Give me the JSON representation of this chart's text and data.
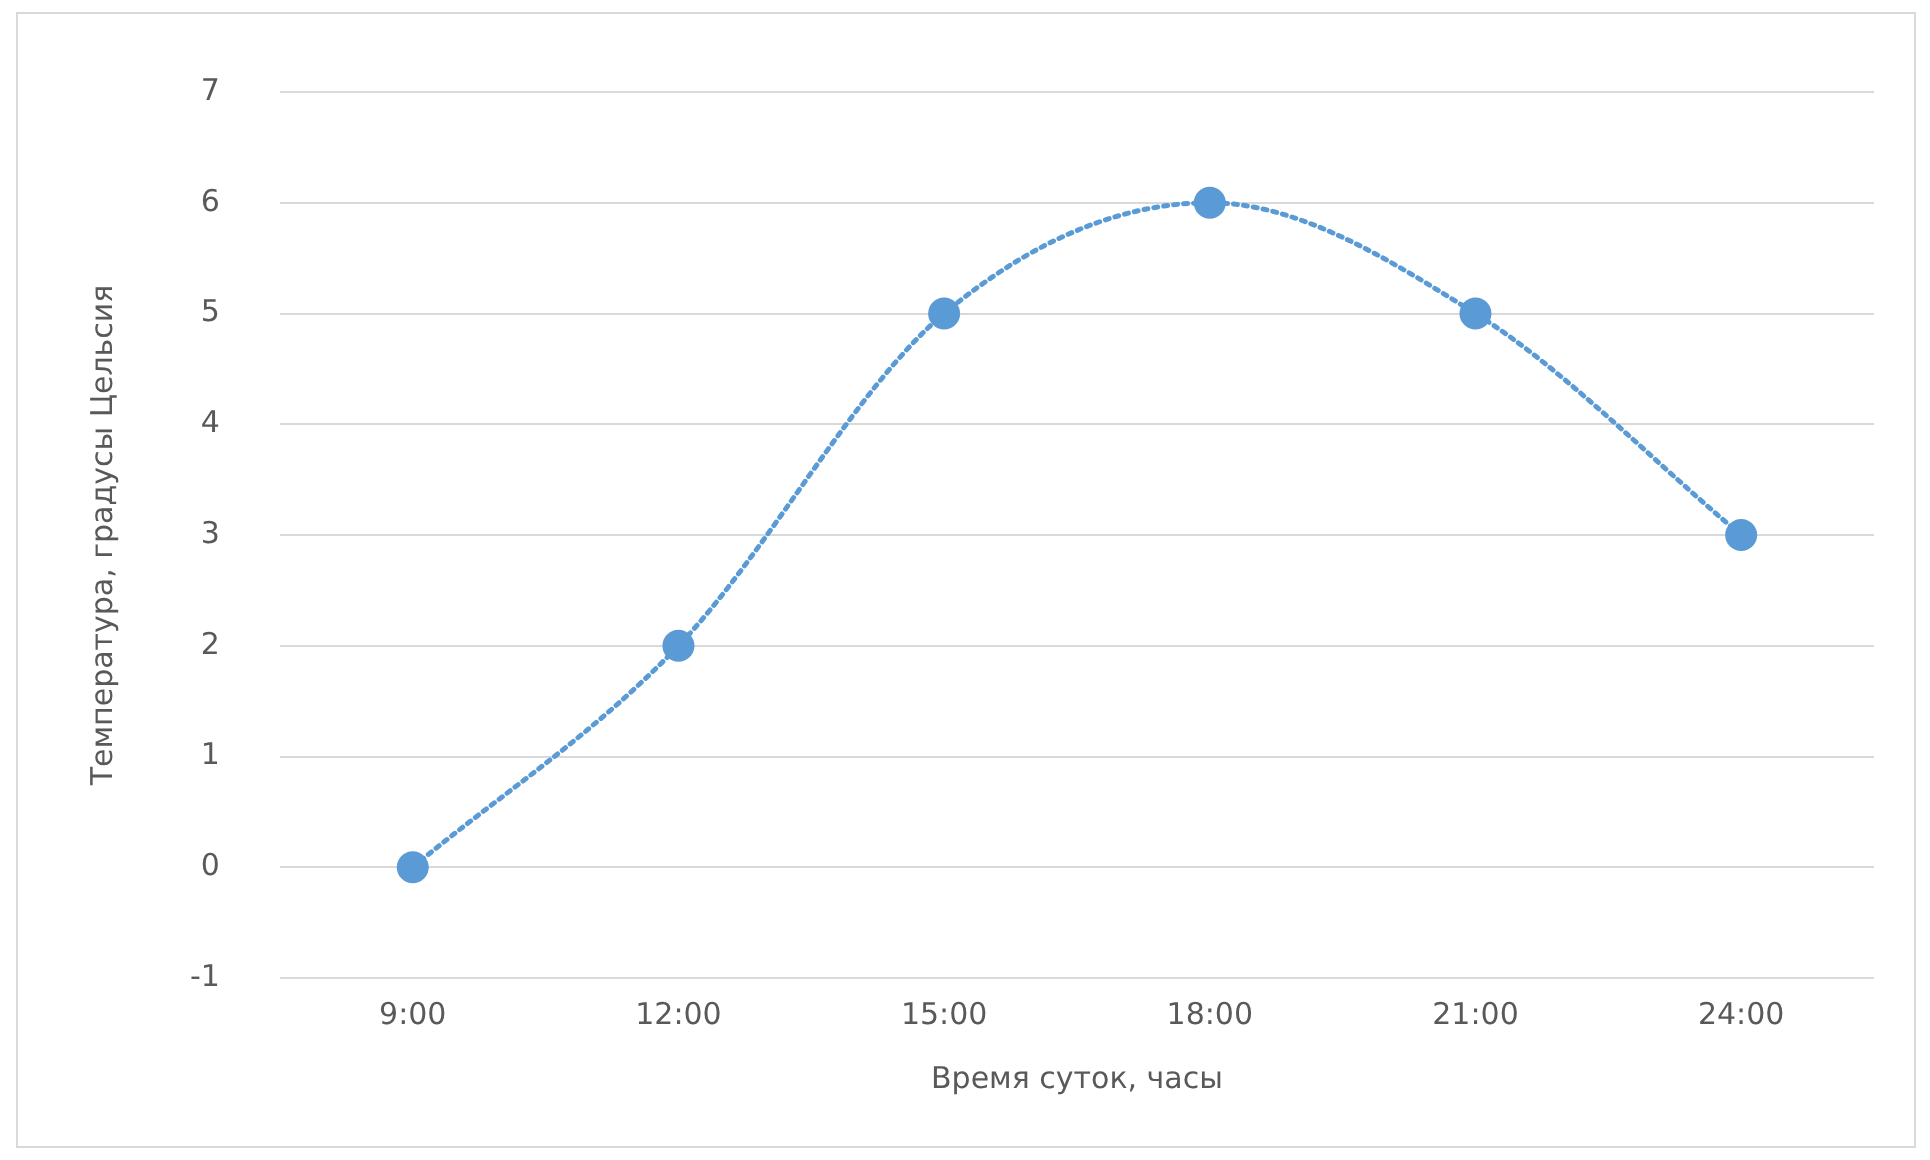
{
  "chart_data": {
    "type": "line",
    "xlabel": "Время суток, часы",
    "ylabel": "Температура, градусы Цельсия",
    "categories": [
      "9:00",
      "12:00",
      "15:00",
      "18:00",
      "21:00",
      "24:00"
    ],
    "series": [
      {
        "color": "#5b9bd5",
        "values": [
          0,
          2,
          5,
          6,
          5,
          3
        ]
      }
    ],
    "ylim": [
      -1,
      7
    ],
    "yticks": [
      -1,
      0,
      1,
      2,
      3,
      4,
      5,
      6,
      7
    ],
    "grid": "y",
    "marker": "circle",
    "line_style": "dotted"
  }
}
